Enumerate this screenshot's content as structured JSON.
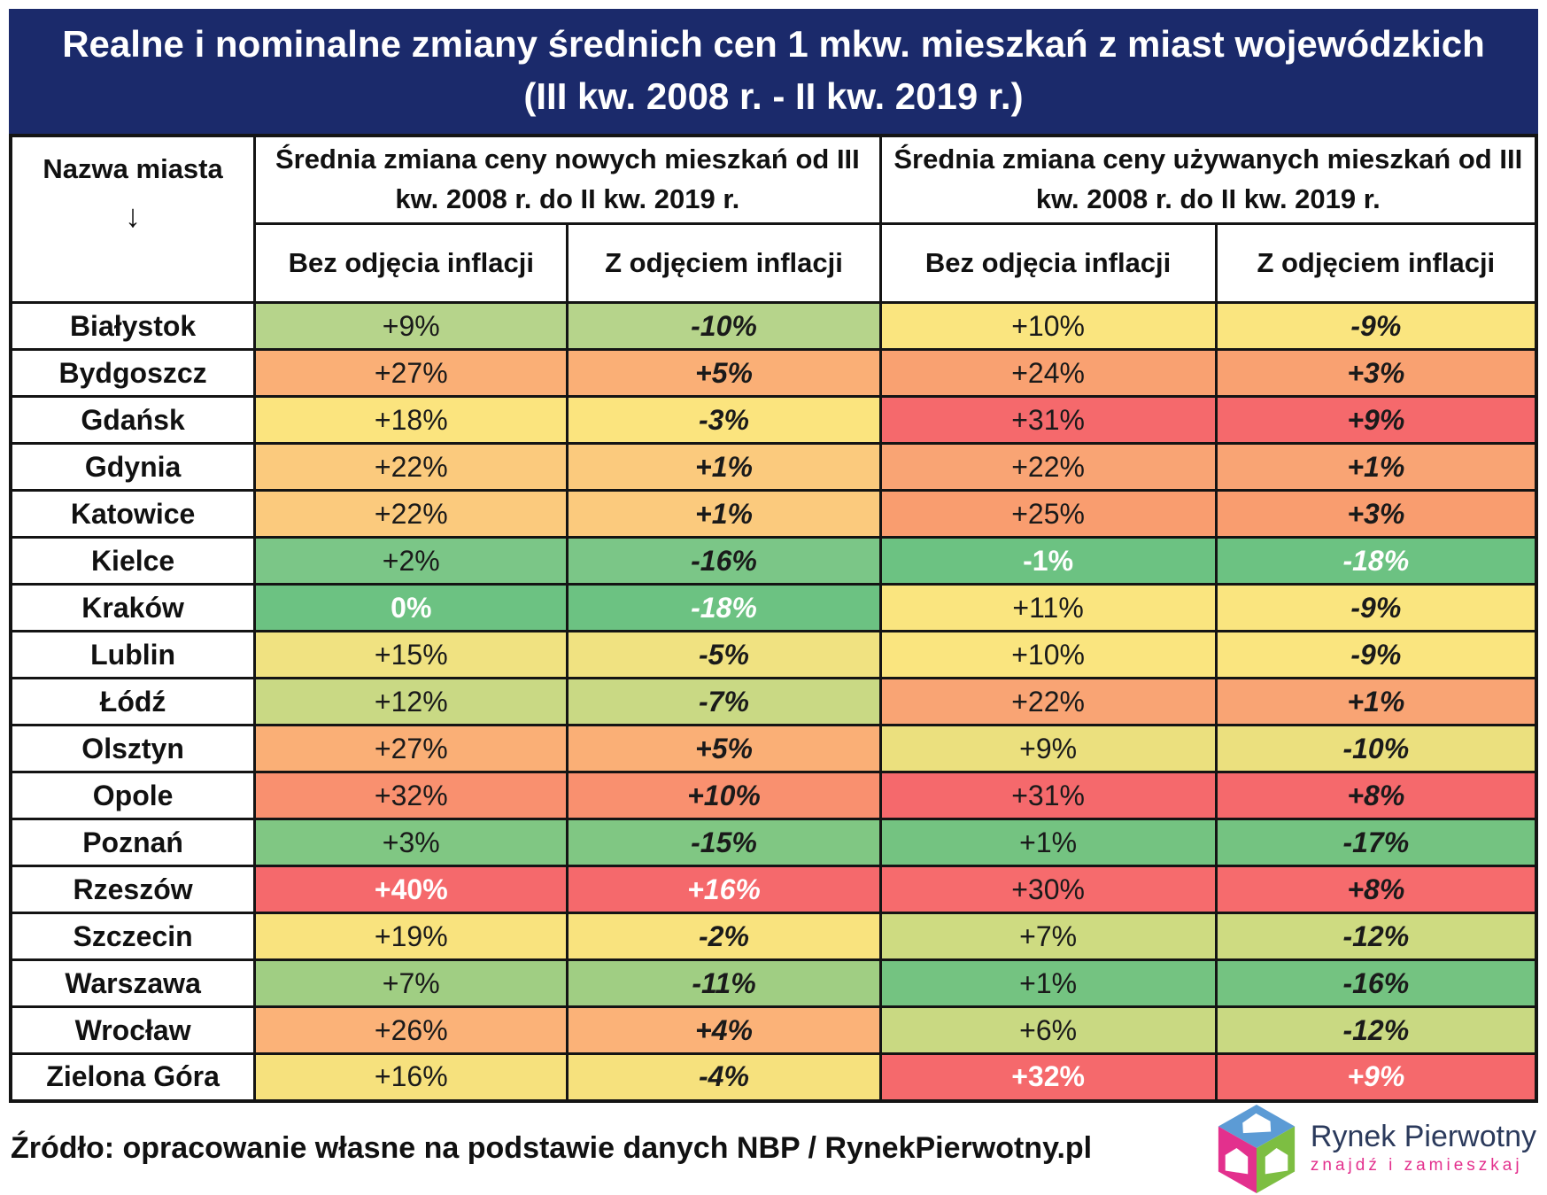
{
  "title": {
    "line1": "Realne i nominalne zmiany średnich cen 1 mkw. mieszkań z miast wojewódzkich",
    "line2": "(III kw. 2008 r. - II kw. 2019 r.)"
  },
  "header": {
    "city_col": "Nazwa miasta",
    "city_col_arrow": "↓",
    "group_new": "Średnia zmiana ceny nowych mieszkań od III kw. 2008 r. do II kw. 2019 r.",
    "group_used": "Średnia zmiana ceny używanych mieszkań od III kw. 2008 r. do II kw. 2019 r.",
    "sub_nominal": "Bez odjęcia inflacji",
    "sub_real": "Z odjęciem inflacji"
  },
  "colors": {
    "title_bg": "#1B2A6B",
    "grid": "#141414",
    "extreme_text": "#ffffff",
    "logo_navy": "#2B3A5C",
    "logo_pink": "#E3308D",
    "logo_blue": "#5C9BD5",
    "logo_green": "#7DBE42"
  },
  "rows": [
    {
      "city": "Białystok",
      "cells": [
        {
          "text": "+9%",
          "bg": "#B6D48B",
          "white": false
        },
        {
          "text": "-10%",
          "bg": "#B6D48B",
          "white": false
        },
        {
          "text": "+10%",
          "bg": "#FAE57F",
          "white": false
        },
        {
          "text": "-9%",
          "bg": "#FAE57F",
          "white": false
        }
      ]
    },
    {
      "city": "Bydgoszcz",
      "cells": [
        {
          "text": "+27%",
          "bg": "#FAAF76",
          "white": false
        },
        {
          "text": "+5%",
          "bg": "#FAAF76",
          "white": false
        },
        {
          "text": "+24%",
          "bg": "#F9A171",
          "white": false
        },
        {
          "text": "+3%",
          "bg": "#F9A171",
          "white": false
        }
      ]
    },
    {
      "city": "Gdańsk",
      "cells": [
        {
          "text": "+18%",
          "bg": "#FBE47E",
          "white": false
        },
        {
          "text": "-3%",
          "bg": "#FBE47E",
          "white": false
        },
        {
          "text": "+31%",
          "bg": "#F5696C",
          "white": false
        },
        {
          "text": "+9%",
          "bg": "#F5696C",
          "white": false
        }
      ]
    },
    {
      "city": "Gdynia",
      "cells": [
        {
          "text": "+22%",
          "bg": "#FBCA7D",
          "white": false
        },
        {
          "text": "+1%",
          "bg": "#FBCA7D",
          "white": false
        },
        {
          "text": "+22%",
          "bg": "#F9A474",
          "white": false
        },
        {
          "text": "+1%",
          "bg": "#F9A474",
          "white": false
        }
      ]
    },
    {
      "city": "Katowice",
      "cells": [
        {
          "text": "+22%",
          "bg": "#FBCA7D",
          "white": false
        },
        {
          "text": "+1%",
          "bg": "#FBCA7D",
          "white": false
        },
        {
          "text": "+25%",
          "bg": "#F99D6F",
          "white": false
        },
        {
          "text": "+3%",
          "bg": "#F99D6F",
          "white": false
        }
      ]
    },
    {
      "city": "Kielce",
      "cells": [
        {
          "text": "+2%",
          "bg": "#7BC687",
          "white": false
        },
        {
          "text": "-16%",
          "bg": "#7BC687",
          "white": false
        },
        {
          "text": "-1%",
          "bg": "#6CC282",
          "white": true
        },
        {
          "text": "-18%",
          "bg": "#6CC282",
          "white": true
        }
      ]
    },
    {
      "city": "Kraków",
      "cells": [
        {
          "text": "0%",
          "bg": "#6CC282",
          "white": true
        },
        {
          "text": "-18%",
          "bg": "#6CC282",
          "white": true
        },
        {
          "text": "+11%",
          "bg": "#FAE57F",
          "white": false
        },
        {
          "text": "-9%",
          "bg": "#FAE57F",
          "white": false
        }
      ]
    },
    {
      "city": "Lublin",
      "cells": [
        {
          "text": "+15%",
          "bg": "#F0E281",
          "white": false
        },
        {
          "text": "-5%",
          "bg": "#F0E281",
          "white": false
        },
        {
          "text": "+10%",
          "bg": "#FAE57F",
          "white": false
        },
        {
          "text": "-9%",
          "bg": "#FAE57F",
          "white": false
        }
      ]
    },
    {
      "city": "Łódź",
      "cells": [
        {
          "text": "+12%",
          "bg": "#C9D984",
          "white": false
        },
        {
          "text": "-7%",
          "bg": "#C9D984",
          "white": false
        },
        {
          "text": "+22%",
          "bg": "#F9A474",
          "white": false
        },
        {
          "text": "+1%",
          "bg": "#F9A474",
          "white": false
        }
      ]
    },
    {
      "city": "Olsztyn",
      "cells": [
        {
          "text": "+27%",
          "bg": "#FAAF76",
          "white": false
        },
        {
          "text": "+5%",
          "bg": "#FAAF76",
          "white": false
        },
        {
          "text": "+9%",
          "bg": "#EBE07E",
          "white": false
        },
        {
          "text": "-10%",
          "bg": "#EBE07E",
          "white": false
        }
      ]
    },
    {
      "city": "Opole",
      "cells": [
        {
          "text": "+32%",
          "bg": "#F9906F",
          "white": false
        },
        {
          "text": "+10%",
          "bg": "#F9906F",
          "white": false
        },
        {
          "text": "+31%",
          "bg": "#F5696C",
          "white": false
        },
        {
          "text": "+8%",
          "bg": "#F5696C",
          "white": false
        }
      ]
    },
    {
      "city": "Poznań",
      "cells": [
        {
          "text": "+3%",
          "bg": "#80C783",
          "white": false
        },
        {
          "text": "-15%",
          "bg": "#80C783",
          "white": false
        },
        {
          "text": "+1%",
          "bg": "#74C381",
          "white": false
        },
        {
          "text": "-17%",
          "bg": "#74C381",
          "white": false
        }
      ]
    },
    {
      "city": "Rzeszów",
      "cells": [
        {
          "text": "+40%",
          "bg": "#F5696C",
          "white": true
        },
        {
          "text": "+16%",
          "bg": "#F5696C",
          "white": true
        },
        {
          "text": "+30%",
          "bg": "#F66B6D",
          "white": false
        },
        {
          "text": "+8%",
          "bg": "#F66B6D",
          "white": false
        }
      ]
    },
    {
      "city": "Szczecin",
      "cells": [
        {
          "text": "+19%",
          "bg": "#F9E37E",
          "white": false
        },
        {
          "text": "-2%",
          "bg": "#F9E37E",
          "white": false
        },
        {
          "text": "+7%",
          "bg": "#CEDB81",
          "white": false
        },
        {
          "text": "-12%",
          "bg": "#CEDB81",
          "white": false
        }
      ]
    },
    {
      "city": "Warszawa",
      "cells": [
        {
          "text": "+7%",
          "bg": "#A0CE83",
          "white": false
        },
        {
          "text": "-11%",
          "bg": "#A0CE83",
          "white": false
        },
        {
          "text": "+1%",
          "bg": "#74C381",
          "white": false
        },
        {
          "text": "-16%",
          "bg": "#74C381",
          "white": false
        }
      ]
    },
    {
      "city": "Wrocław",
      "cells": [
        {
          "text": "+26%",
          "bg": "#FBB278",
          "white": false
        },
        {
          "text": "+4%",
          "bg": "#FBB278",
          "white": false
        },
        {
          "text": "+6%",
          "bg": "#C9D982",
          "white": false
        },
        {
          "text": "-12%",
          "bg": "#C9D982",
          "white": false
        }
      ]
    },
    {
      "city": "Zielona Góra",
      "cells": [
        {
          "text": "+16%",
          "bg": "#F6E17D",
          "white": false
        },
        {
          "text": "-4%",
          "bg": "#F6E17D",
          "white": false
        },
        {
          "text": "+32%",
          "bg": "#F5696C",
          "white": true
        },
        {
          "text": "+9%",
          "bg": "#F5696C",
          "white": true
        }
      ]
    }
  ],
  "footer": {
    "source": "Źródło: opracowanie własne na podstawie danych NBP / RynekPierwotny.pl"
  },
  "logo": {
    "brand": "Rynek Pierwotny",
    "tagline": "znajdź i zamieszkaj"
  },
  "chart_data": {
    "type": "table",
    "title": "Realne i nominalne zmiany średnich cen 1 mkw. mieszkań z miast wojewódzkich (III kw. 2008 r. - II kw. 2019 r.)",
    "columns": [
      "Nazwa miasta",
      "Nowe mieszkania: bez odjęcia inflacji (%)",
      "Nowe mieszkania: z odjęciem inflacji (%)",
      "Używane mieszkania: bez odjęcia inflacji (%)",
      "Używane mieszkania: z odjęciem inflacji (%)"
    ],
    "rows": [
      [
        "Białystok",
        9,
        -10,
        10,
        -9
      ],
      [
        "Bydgoszcz",
        27,
        5,
        24,
        3
      ],
      [
        "Gdańsk",
        18,
        -3,
        31,
        9
      ],
      [
        "Gdynia",
        22,
        1,
        22,
        1
      ],
      [
        "Katowice",
        22,
        1,
        25,
        3
      ],
      [
        "Kielce",
        2,
        -16,
        -1,
        -18
      ],
      [
        "Kraków",
        0,
        -18,
        11,
        -9
      ],
      [
        "Lublin",
        15,
        -5,
        10,
        -9
      ],
      [
        "Łódź",
        12,
        -7,
        22,
        1
      ],
      [
        "Olsztyn",
        27,
        5,
        9,
        -10
      ],
      [
        "Opole",
        32,
        10,
        31,
        8
      ],
      [
        "Poznań",
        3,
        -15,
        1,
        -17
      ],
      [
        "Rzeszów",
        40,
        16,
        30,
        8
      ],
      [
        "Szczecin",
        19,
        -2,
        7,
        -12
      ],
      [
        "Warszawa",
        7,
        -11,
        1,
        -16
      ],
      [
        "Wrocław",
        26,
        4,
        6,
        -12
      ],
      [
        "Zielona Góra",
        16,
        -4,
        32,
        9
      ]
    ],
    "color_coding": "green = lowest change per column, yellow = middle, red = highest change per column",
    "source": "NBP / RynekPierwotny.pl"
  }
}
